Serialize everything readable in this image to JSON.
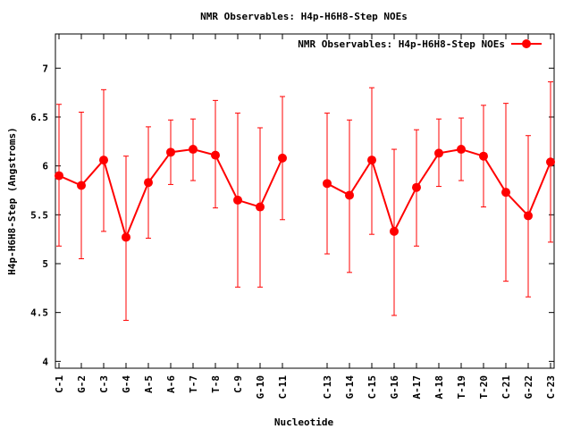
{
  "chart_data": {
    "type": "line",
    "title": "NMR Observables: H4p-H6H8-Step NOEs",
    "xlabel": "Nucleotide",
    "ylabel": "H4p-H6H8-Step (Angstroms)",
    "legend": {
      "label": "NMR Observables: H4p-H6H8-Step NOEs",
      "placement": "top-right"
    },
    "grid": false,
    "xlim": [
      0.84,
      23.16
    ],
    "ylim": [
      3.93,
      7.35
    ],
    "yticks": [
      4,
      4.5,
      5,
      5.5,
      6,
      6.5,
      7
    ],
    "ytick_labels": [
      "4",
      "4.5",
      "5",
      "5.5",
      "6",
      "6.5",
      "7"
    ],
    "color": "#ff0000",
    "series": [
      {
        "name": "NMR Observables: H4p-H6H8-Step NOEs",
        "segments": [
          [
            {
              "x": 1,
              "label": "C-1",
              "y": 5.9,
              "low": 5.18,
              "high": 6.63
            },
            {
              "x": 2,
              "label": "G-2",
              "y": 5.8,
              "low": 5.05,
              "high": 6.55
            },
            {
              "x": 3,
              "label": "C-3",
              "y": 6.06,
              "low": 5.33,
              "high": 6.78
            },
            {
              "x": 4,
              "label": "G-4",
              "y": 5.27,
              "low": 4.42,
              "high": 6.1
            },
            {
              "x": 5,
              "label": "A-5",
              "y": 5.83,
              "low": 5.26,
              "high": 6.4
            },
            {
              "x": 6,
              "label": "A-6",
              "y": 6.14,
              "low": 5.81,
              "high": 6.47
            },
            {
              "x": 7,
              "label": "T-7",
              "y": 6.17,
              "low": 5.85,
              "high": 6.48
            },
            {
              "x": 8,
              "label": "T-8",
              "y": 6.11,
              "low": 5.57,
              "high": 6.67
            },
            {
              "x": 9,
              "label": "C-9",
              "y": 5.65,
              "low": 4.76,
              "high": 6.54
            },
            {
              "x": 10,
              "label": "G-10",
              "y": 5.58,
              "low": 4.76,
              "high": 6.39
            },
            {
              "x": 11,
              "label": "C-11",
              "y": 6.08,
              "low": 5.45,
              "high": 6.71
            }
          ],
          [
            {
              "x": 13,
              "label": "C-13",
              "y": 5.82,
              "low": 5.1,
              "high": 6.54
            },
            {
              "x": 14,
              "label": "G-14",
              "y": 5.7,
              "low": 4.91,
              "high": 6.47
            },
            {
              "x": 15,
              "label": "C-15",
              "y": 6.06,
              "low": 5.3,
              "high": 6.8
            },
            {
              "x": 16,
              "label": "G-16",
              "y": 5.33,
              "low": 4.47,
              "high": 6.17
            },
            {
              "x": 17,
              "label": "A-17",
              "y": 5.78,
              "low": 5.18,
              "high": 6.37
            },
            {
              "x": 18,
              "label": "A-18",
              "y": 6.13,
              "low": 5.79,
              "high": 6.48
            },
            {
              "x": 19,
              "label": "T-19",
              "y": 6.17,
              "low": 5.85,
              "high": 6.49
            },
            {
              "x": 20,
              "label": "T-20",
              "y": 6.1,
              "low": 5.58,
              "high": 6.62
            },
            {
              "x": 21,
              "label": "C-21",
              "y": 5.73,
              "low": 4.82,
              "high": 6.64
            },
            {
              "x": 22,
              "label": "G-22",
              "y": 5.49,
              "low": 4.66,
              "high": 6.31
            },
            {
              "x": 23,
              "label": "C-23",
              "y": 6.04,
              "low": 5.22,
              "high": 6.86
            }
          ]
        ]
      }
    ]
  }
}
